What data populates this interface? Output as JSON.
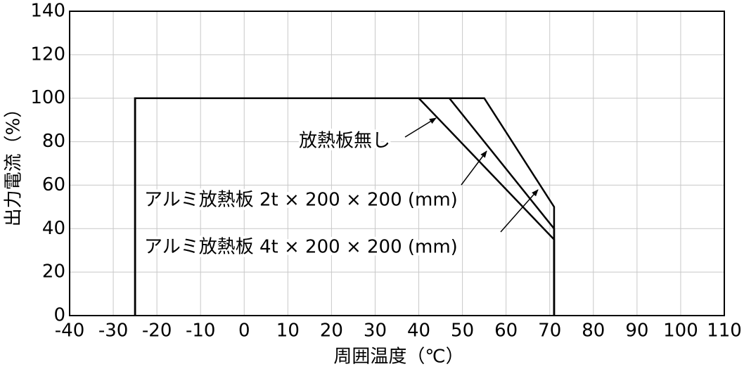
{
  "chart_data": {
    "type": "line",
    "x_label": "周囲温度（℃）",
    "y_label": "出力電流（%）",
    "xlim": [
      -40,
      110
    ],
    "xticks": [
      -40,
      -30,
      -20,
      -10,
      0,
      10,
      20,
      30,
      40,
      50,
      60,
      70,
      80,
      90,
      100,
      110
    ],
    "ylim": [
      0,
      140
    ],
    "yticks": [
      0,
      20,
      40,
      60,
      80,
      100,
      120,
      140
    ],
    "grid": true,
    "series": [
      {
        "name": "放熱板無し",
        "color": "#000000",
        "x": [
          -25,
          -25,
          40,
          71,
          71
        ],
        "values": [
          0,
          100,
          100,
          35,
          0
        ]
      },
      {
        "name": "アルミ放熱板 2t × 200 × 200 (mm)",
        "color": "#000000",
        "x": [
          -25,
          -25,
          47,
          71,
          71
        ],
        "values": [
          0,
          100,
          100,
          40,
          0
        ]
      },
      {
        "name": "アルミ放熱板 4t × 200 × 200 (mm)",
        "color": "#000000",
        "x": [
          -25,
          -25,
          55,
          71,
          71
        ],
        "values": [
          0,
          100,
          100,
          50,
          0
        ]
      }
    ]
  }
}
